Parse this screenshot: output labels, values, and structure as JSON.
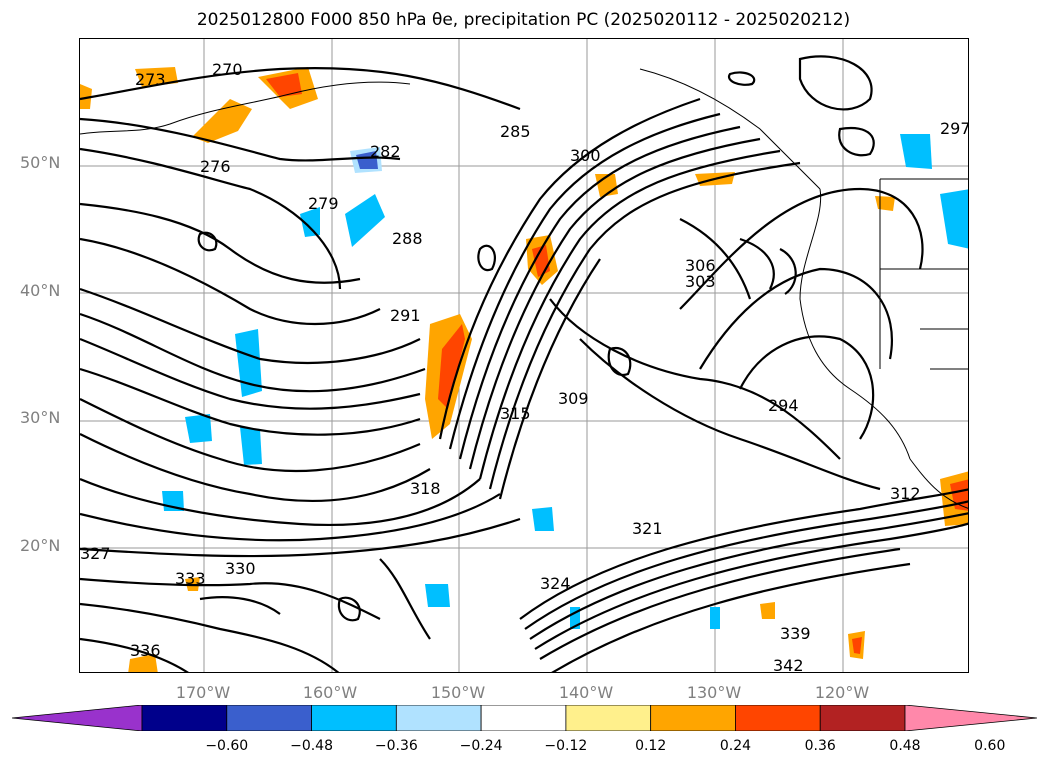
{
  "title": "2025012800 F000 850 hPa θe, precipitation PC (2025020112 - 2025020212)",
  "lat_labels": [
    "50°N",
    "40°N",
    "30°N",
    "20°N"
  ],
  "lon_labels": [
    "170°W",
    "160°W",
    "150°W",
    "140°W",
    "130°W",
    "120°W"
  ],
  "colorbar": {
    "ticks": [
      "−0.60",
      "−0.48",
      "−0.36",
      "−0.24",
      "−0.12",
      "0.12",
      "0.24",
      "0.36",
      "0.48",
      "0.60"
    ],
    "colors": [
      "#9932cc",
      "#00008b",
      "#3a5fcd",
      "#00bfff",
      "#b0e2ff",
      "#ffffff",
      "#fff08c",
      "#ffa500",
      "#ff4500",
      "#b22222",
      "#ff88aa"
    ]
  },
  "contour_labels": [
    "270",
    "273",
    "276",
    "279",
    "282",
    "285",
    "288",
    "291",
    "294",
    "297",
    "300",
    "303",
    "306",
    "309",
    "312",
    "315",
    "318",
    "321",
    "324",
    "327",
    "330",
    "333",
    "336",
    "339",
    "342"
  ]
}
